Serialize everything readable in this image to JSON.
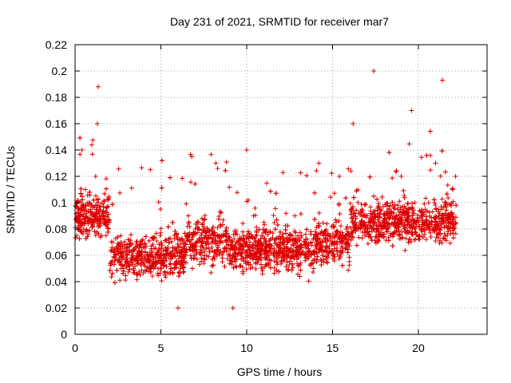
{
  "chart_data": {
    "type": "scatter",
    "title": "Day 231 of 2021, SRMTID for receiver mar7",
    "xlabel": "GPS time / hours",
    "ylabel": "SRMTID / TECUs",
    "xlim": [
      0,
      24
    ],
    "ylim": [
      0,
      0.22
    ],
    "xticks": [
      0,
      5,
      10,
      15,
      20
    ],
    "xtick_labels": [
      "0",
      "5",
      "10",
      "15",
      "20"
    ],
    "yticks": [
      0,
      0.02,
      0.04,
      0.06,
      0.08,
      0.1,
      0.12,
      0.14,
      0.16,
      0.18,
      0.2,
      0.22
    ],
    "ytick_labels": [
      "0",
      "0.02",
      "0.04",
      "0.06",
      "0.08",
      "0.1",
      "0.12",
      "0.14",
      "0.16",
      "0.18",
      "0.2",
      "0.22"
    ],
    "grid": true,
    "marker": "plus",
    "marker_color": "#dd0000",
    "series": [
      {
        "name": "SRMTID",
        "x": [
          0.1,
          0.3,
          0.4,
          0.5,
          0.6,
          0.8,
          1.0,
          1.2,
          1.3,
          1.35,
          1.4,
          1.6,
          1.8,
          2.0,
          2.2,
          2.4,
          2.6,
          2.8,
          3.0,
          3.2,
          3.4,
          3.6,
          3.8,
          4.0,
          4.2,
          4.4,
          4.6,
          4.8,
          5.0,
          5.2,
          5.4,
          5.6,
          5.8,
          6.0,
          6.2,
          6.4,
          6.6,
          6.8,
          7.0,
          7.2,
          7.4,
          7.6,
          7.8,
          8.0,
          8.2,
          8.4,
          8.6,
          8.8,
          9.0,
          9.2,
          9.4,
          9.6,
          9.8,
          10.0,
          10.2,
          10.4,
          10.6,
          10.8,
          11.0,
          11.2,
          11.4,
          11.6,
          11.8,
          12.0,
          12.2,
          12.4,
          12.6,
          12.8,
          13.0,
          13.2,
          13.4,
          13.6,
          13.8,
          14.0,
          14.2,
          14.4,
          14.6,
          14.8,
          15.0,
          15.2,
          15.4,
          15.6,
          15.8,
          16.0,
          16.2,
          16.4,
          16.6,
          16.8,
          17.0,
          17.2,
          17.4,
          17.6,
          17.8,
          18.0,
          18.2,
          18.4,
          18.6,
          18.8,
          19.0,
          19.2,
          19.4,
          19.6,
          19.8,
          20.0,
          20.2,
          20.4,
          20.6,
          20.8,
          21.0,
          21.2,
          21.4,
          21.6,
          21.8,
          22.0
        ],
        "y": [
          0.075,
          0.09,
          0.14,
          0.08,
          0.11,
          0.1,
          0.085,
          0.12,
          0.16,
          0.188,
          0.095,
          0.09,
          0.075,
          0.085,
          0.07,
          0.06,
          0.055,
          0.05,
          0.06,
          0.055,
          0.05,
          0.06,
          0.045,
          0.055,
          0.06,
          0.05,
          0.065,
          0.06,
          0.055,
          0.06,
          0.065,
          0.05,
          0.06,
          0.02,
          0.055,
          0.065,
          0.09,
          0.135,
          0.08,
          0.085,
          0.07,
          0.075,
          0.065,
          0.08,
          0.13,
          0.075,
          0.07,
          0.065,
          0.06,
          0.02,
          0.07,
          0.065,
          0.075,
          0.14,
          0.06,
          0.09,
          0.065,
          0.07,
          0.085,
          0.06,
          0.065,
          0.06,
          0.055,
          0.065,
          0.06,
          0.07,
          0.065,
          0.09,
          0.06,
          0.075,
          0.07,
          0.065,
          0.07,
          0.075,
          0.13,
          0.07,
          0.075,
          0.065,
          0.07,
          0.075,
          0.12,
          0.07,
          0.08,
          0.075,
          0.16,
          0.08,
          0.085,
          0.09,
          0.08,
          0.085,
          0.2,
          0.09,
          0.095,
          0.085,
          0.08,
          0.09,
          0.085,
          0.095,
          0.12,
          0.09,
          0.095,
          0.17,
          0.1,
          0.085,
          0.09,
          0.095,
          0.1,
          0.085,
          0.13,
          0.09,
          0.193,
          0.1,
          0.09,
          0.11
        ],
        "point_count": 3000,
        "notes": "Dense cloud of thousands of points; baseline ~0.03-0.10, spikes near hours 1.3, 6.5, 10, 17.5, 21.",
        "sample_only": true
      }
    ]
  }
}
